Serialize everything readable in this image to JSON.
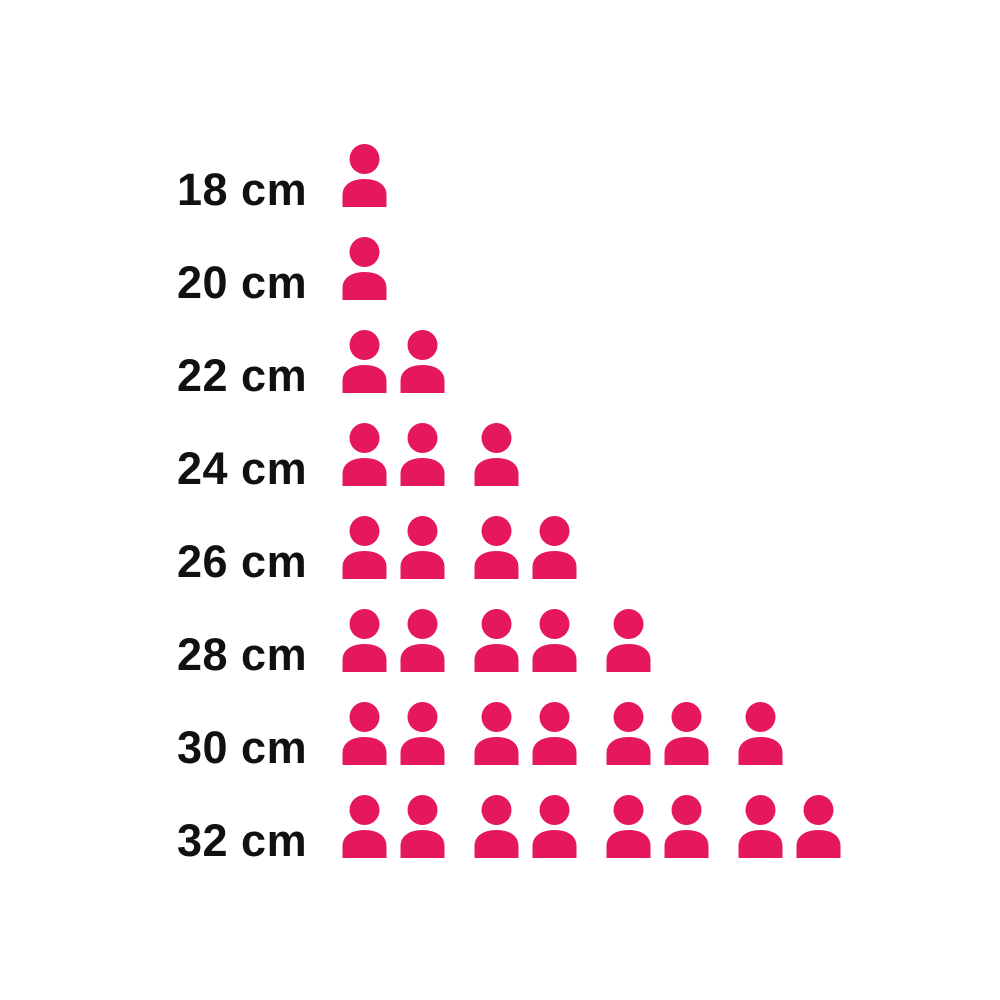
{
  "page": {
    "background": "#FFFFFF"
  },
  "chart_data": {
    "type": "bar",
    "variant": "pictograph-unit-icons",
    "title": "",
    "xlabel": "",
    "ylabel": "",
    "categories": [
      "18 cm",
      "20 cm",
      "22 cm",
      "24 cm",
      "26 cm",
      "28 cm",
      "30 cm",
      "32 cm"
    ],
    "values": [
      1,
      1,
      2,
      3,
      4,
      5,
      7,
      8
    ],
    "unit_per_icon": 1,
    "icon": "person-icon",
    "icon_group_size": 2,
    "icon_color": "#E5175D",
    "label_color": "#111111",
    "legend": "none",
    "axes": "none",
    "grid": "off"
  }
}
